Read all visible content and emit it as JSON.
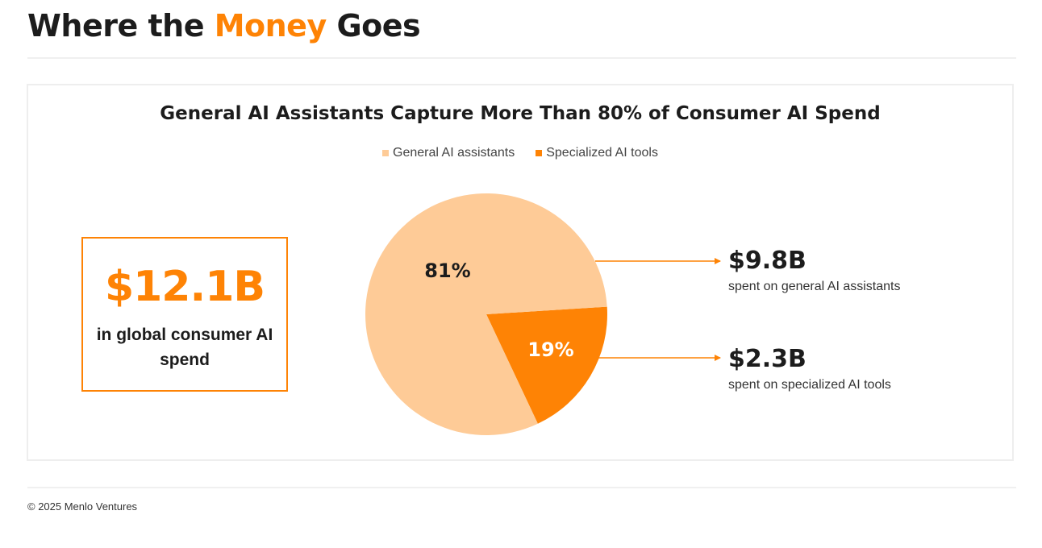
{
  "header": {
    "title_pre": "Where the ",
    "title_accent": "Money",
    "title_post": " Goes"
  },
  "summary": {
    "value": "$12.1B",
    "caption": "in global consumer AI spend"
  },
  "callouts": [
    {
      "value": "$9.8B",
      "description": "spent on general AI assistants"
    },
    {
      "value": "$2.3B",
      "description": "spent on specialized AI tools"
    }
  ],
  "footer": {
    "copyright": "© 2025 Menlo Ventures"
  },
  "colors": {
    "accent": "#fe8305",
    "general": "#fecb97",
    "specialized": "#fe8305"
  },
  "chart_data": {
    "type": "pie",
    "title": "General AI Assistants Capture More Than 80% of Consumer AI Spend",
    "legend_position": "top",
    "categories": [
      "General AI assistants",
      "Specialized AI tools"
    ],
    "values": [
      81,
      19
    ],
    "labels": [
      "81%",
      "19%"
    ],
    "colors": [
      "#fecb97",
      "#fe8305"
    ]
  }
}
